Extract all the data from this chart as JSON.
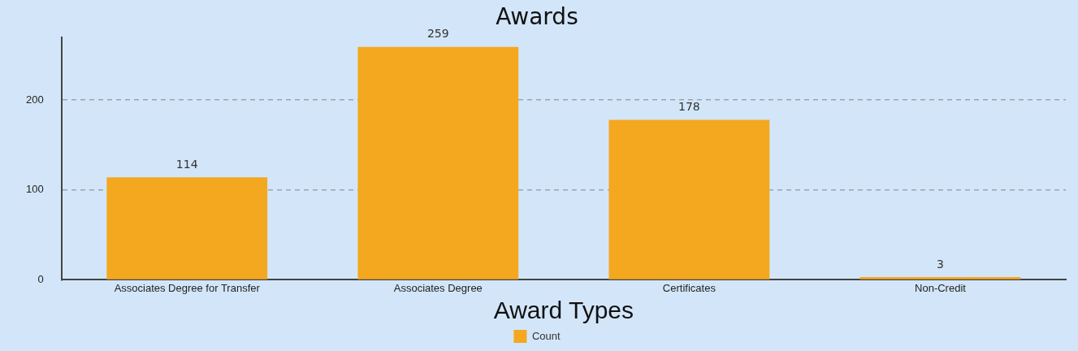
{
  "chart_data": {
    "type": "bar",
    "title": "Awards",
    "xlabel": "Award Types",
    "categories": [
      "Associates Degree for Transfer",
      "Associates Degree",
      "Certificates",
      "Non-Credit"
    ],
    "series": [
      {
        "name": "Count",
        "color": "#f4a81f",
        "values": [
          114,
          259,
          178,
          3
        ]
      }
    ],
    "ylim": [
      0,
      270
    ],
    "yticks": [
      0,
      100,
      200
    ],
    "grid": "y",
    "line_style": "dashed",
    "legend": "bottom",
    "data_labels": true
  }
}
